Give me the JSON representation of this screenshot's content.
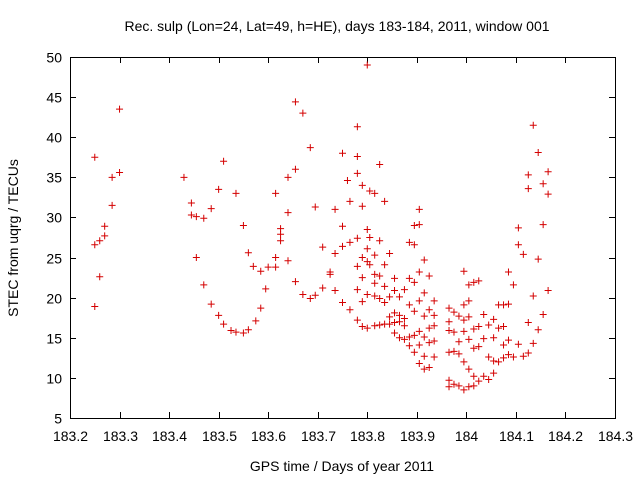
{
  "chart_data": {
    "type": "scatter",
    "title": "Rec. sulp (Lon=24, Lat=49, h=HE), days 183-184, 2011, window 001",
    "xlabel": "GPS time / Days of year 2011",
    "ylabel": "STEC from uqrg / TECUs",
    "xlim": [
      183.2,
      184.3
    ],
    "ylim": [
      5,
      50
    ],
    "xticks": [
      183.2,
      183.3,
      183.4,
      183.5,
      183.6,
      183.7,
      183.8,
      183.9,
      184.0,
      184.1,
      184.2,
      184.3
    ],
    "xtick_labels": [
      "183.2",
      "183.3",
      "183.4",
      "183.5",
      "183.6",
      "183.7",
      "183.8",
      "183.9",
      "184",
      "184.1",
      "184.2",
      "184.3"
    ],
    "yticks": [
      5,
      10,
      15,
      20,
      25,
      30,
      35,
      40,
      45,
      50
    ],
    "ytick_labels": [
      "5",
      "10",
      "15",
      "20",
      "25",
      "30",
      "35",
      "40",
      "45",
      "50"
    ],
    "grid": false,
    "marker": "+",
    "color": "#d40000",
    "points": [
      [
        183.25,
        37.5
      ],
      [
        183.25,
        26.6
      ],
      [
        183.25,
        18.9
      ],
      [
        183.26,
        27.1
      ],
      [
        183.26,
        22.6
      ],
      [
        183.27,
        28.9
      ],
      [
        183.27,
        27.7
      ],
      [
        183.285,
        31.5
      ],
      [
        183.285,
        35.0
      ],
      [
        183.3,
        43.5
      ],
      [
        183.3,
        35.6
      ],
      [
        183.43,
        35.0
      ],
      [
        183.445,
        31.8
      ],
      [
        183.445,
        30.3
      ],
      [
        183.455,
        30.1
      ],
      [
        183.455,
        25.0
      ],
      [
        183.47,
        29.9
      ],
      [
        183.47,
        21.6
      ],
      [
        183.485,
        31.1
      ],
      [
        183.485,
        19.2
      ],
      [
        183.5,
        33.5
      ],
      [
        183.5,
        17.8
      ],
      [
        183.51,
        37.0
      ],
      [
        183.51,
        16.7
      ],
      [
        183.525,
        15.9
      ],
      [
        183.535,
        33.0
      ],
      [
        183.535,
        15.7
      ],
      [
        183.55,
        29.0
      ],
      [
        183.55,
        15.6
      ],
      [
        183.56,
        25.6
      ],
      [
        183.56,
        16.0
      ],
      [
        183.57,
        23.9
      ],
      [
        183.575,
        17.1
      ],
      [
        183.585,
        23.3
      ],
      [
        183.585,
        18.7
      ],
      [
        183.595,
        21.1
      ],
      [
        183.6,
        23.8
      ],
      [
        183.615,
        33.0
      ],
      [
        183.615,
        25.0
      ],
      [
        183.615,
        23.8
      ],
      [
        183.625,
        28.6
      ],
      [
        183.625,
        27.9
      ],
      [
        183.625,
        27.1
      ],
      [
        183.64,
        30.6
      ],
      [
        183.64,
        35.0
      ],
      [
        183.64,
        24.6
      ],
      [
        183.655,
        36.0
      ],
      [
        183.655,
        44.4
      ],
      [
        183.655,
        22.0
      ],
      [
        183.67,
        43.0
      ],
      [
        183.67,
        20.4
      ],
      [
        183.685,
        38.7
      ],
      [
        183.685,
        19.9
      ],
      [
        183.695,
        31.3
      ],
      [
        183.695,
        20.3
      ],
      [
        183.71,
        26.3
      ],
      [
        183.71,
        21.2
      ],
      [
        183.725,
        23.2
      ],
      [
        183.725,
        22.9
      ],
      [
        183.735,
        31.0
      ],
      [
        183.735,
        25.5
      ],
      [
        183.735,
        20.9
      ],
      [
        183.75,
        38.0
      ],
      [
        183.75,
        28.9
      ],
      [
        183.75,
        26.4
      ],
      [
        183.75,
        19.4
      ],
      [
        183.76,
        34.6
      ],
      [
        183.765,
        32.0
      ],
      [
        183.765,
        26.9
      ],
      [
        183.765,
        18.5
      ],
      [
        183.78,
        41.3
      ],
      [
        183.78,
        37.6
      ],
      [
        183.78,
        35.5
      ],
      [
        183.78,
        27.4
      ],
      [
        183.78,
        23.9
      ],
      [
        183.78,
        21.0
      ],
      [
        183.78,
        17.2
      ],
      [
        183.79,
        34.0
      ],
      [
        183.79,
        31.4
      ],
      [
        183.79,
        25.0
      ],
      [
        183.79,
        22.5
      ],
      [
        183.79,
        19.5
      ],
      [
        183.79,
        16.4
      ],
      [
        183.8,
        49.0
      ],
      [
        183.8,
        28.5
      ],
      [
        183.8,
        26.1
      ],
      [
        183.8,
        24.5
      ],
      [
        183.8,
        20.4
      ],
      [
        183.8,
        16.2
      ],
      [
        183.805,
        33.3
      ],
      [
        183.805,
        27.5
      ],
      [
        183.805,
        24.1
      ],
      [
        183.815,
        33.0
      ],
      [
        183.815,
        25.3
      ],
      [
        183.815,
        22.9
      ],
      [
        183.815,
        21.8
      ],
      [
        183.815,
        20.2
      ],
      [
        183.815,
        16.5
      ],
      [
        183.825,
        36.6
      ],
      [
        183.825,
        27.1
      ],
      [
        183.825,
        22.7
      ],
      [
        183.825,
        19.9
      ],
      [
        183.825,
        16.6
      ],
      [
        183.835,
        32.0
      ],
      [
        183.835,
        24.1
      ],
      [
        183.835,
        21.4
      ],
      [
        183.835,
        19.4
      ],
      [
        183.835,
        16.7
      ],
      [
        183.845,
        25.5
      ],
      [
        183.845,
        20.1
      ],
      [
        183.845,
        17.6
      ],
      [
        183.845,
        16.7
      ],
      [
        183.855,
        22.4
      ],
      [
        183.855,
        20.9
      ],
      [
        183.855,
        18.1
      ],
      [
        183.855,
        16.9
      ],
      [
        183.855,
        15.6
      ],
      [
        183.865,
        20.1
      ],
      [
        183.865,
        17.8
      ],
      [
        183.865,
        17.0
      ],
      [
        183.865,
        15.0
      ],
      [
        183.875,
        21.0
      ],
      [
        183.875,
        17.4
      ],
      [
        183.875,
        16.5
      ],
      [
        183.875,
        14.8
      ],
      [
        183.885,
        26.9
      ],
      [
        183.885,
        22.4
      ],
      [
        183.885,
        19.1
      ],
      [
        183.885,
        15.1
      ],
      [
        183.885,
        14.0
      ],
      [
        183.895,
        29.0
      ],
      [
        183.895,
        26.6
      ],
      [
        183.895,
        21.9
      ],
      [
        183.895,
        18.3
      ],
      [
        183.895,
        15.3
      ],
      [
        183.895,
        13.2
      ],
      [
        183.905,
        31.0
      ],
      [
        183.905,
        29.1
      ],
      [
        183.905,
        23.2
      ],
      [
        183.905,
        19.6
      ],
      [
        183.905,
        15.8
      ],
      [
        183.905,
        14.1
      ],
      [
        183.905,
        11.8
      ],
      [
        183.915,
        24.7
      ],
      [
        183.915,
        20.6
      ],
      [
        183.915,
        17.7
      ],
      [
        183.915,
        15.1
      ],
      [
        183.915,
        12.7
      ],
      [
        183.915,
        11.1
      ],
      [
        183.925,
        22.7
      ],
      [
        183.925,
        18.5
      ],
      [
        183.925,
        16.2
      ],
      [
        183.925,
        14.4
      ],
      [
        183.925,
        11.3
      ],
      [
        183.935,
        19.6
      ],
      [
        183.935,
        17.8
      ],
      [
        183.935,
        16.5
      ],
      [
        183.935,
        14.6
      ],
      [
        183.935,
        12.6
      ],
      [
        183.965,
        18.7
      ],
      [
        183.965,
        17.0
      ],
      [
        183.965,
        15.9
      ],
      [
        183.965,
        13.2
      ],
      [
        183.965,
        9.7
      ],
      [
        183.965,
        8.9
      ],
      [
        183.975,
        18.2
      ],
      [
        183.975,
        15.7
      ],
      [
        183.975,
        13.3
      ],
      [
        183.975,
        9.2
      ],
      [
        183.985,
        17.7
      ],
      [
        183.985,
        14.5
      ],
      [
        183.985,
        13.0
      ],
      [
        183.985,
        9.0
      ],
      [
        183.995,
        23.3
      ],
      [
        183.995,
        19.1
      ],
      [
        183.995,
        17.2
      ],
      [
        183.995,
        15.8
      ],
      [
        183.995,
        12.0
      ],
      [
        183.995,
        8.5
      ],
      [
        184.005,
        21.6
      ],
      [
        184.005,
        19.6
      ],
      [
        184.005,
        17.6
      ],
      [
        184.005,
        14.8
      ],
      [
        184.005,
        11.1
      ],
      [
        184.005,
        8.9
      ],
      [
        184.015,
        21.9
      ],
      [
        184.015,
        16.1
      ],
      [
        184.015,
        13.7
      ],
      [
        184.015,
        10.2
      ],
      [
        184.015,
        9.0
      ],
      [
        184.025,
        22.1
      ],
      [
        184.025,
        16.4
      ],
      [
        184.025,
        13.9
      ],
      [
        184.025,
        9.6
      ],
      [
        184.035,
        17.9
      ],
      [
        184.035,
        14.9
      ],
      [
        184.035,
        10.2
      ],
      [
        184.045,
        16.6
      ],
      [
        184.045,
        12.6
      ],
      [
        184.045,
        9.8
      ],
      [
        184.055,
        17.3
      ],
      [
        184.055,
        15.0
      ],
      [
        184.055,
        12.1
      ],
      [
        184.055,
        10.6
      ],
      [
        184.065,
        19.1
      ],
      [
        184.065,
        16.2
      ],
      [
        184.065,
        12.0
      ],
      [
        184.075,
        19.1
      ],
      [
        184.075,
        16.4
      ],
      [
        184.075,
        14.1
      ],
      [
        184.075,
        12.5
      ],
      [
        184.085,
        23.2
      ],
      [
        184.085,
        19.2
      ],
      [
        184.085,
        14.7
      ],
      [
        184.085,
        12.9
      ],
      [
        184.095,
        21.6
      ],
      [
        184.095,
        12.6
      ],
      [
        184.105,
        28.7
      ],
      [
        184.105,
        26.6
      ],
      [
        184.105,
        14.2
      ],
      [
        184.115,
        25.4
      ],
      [
        184.115,
        12.7
      ],
      [
        184.125,
        35.3
      ],
      [
        184.125,
        33.6
      ],
      [
        184.125,
        16.9
      ],
      [
        184.125,
        13.1
      ],
      [
        184.135,
        41.5
      ],
      [
        184.135,
        20.2
      ],
      [
        184.135,
        14.3
      ],
      [
        184.145,
        38.1
      ],
      [
        184.145,
        24.8
      ],
      [
        184.145,
        16.0
      ],
      [
        184.155,
        34.2
      ],
      [
        184.155,
        29.1
      ],
      [
        184.155,
        17.9
      ],
      [
        184.165,
        35.7
      ],
      [
        184.165,
        32.9
      ],
      [
        184.165,
        20.9
      ]
    ]
  }
}
